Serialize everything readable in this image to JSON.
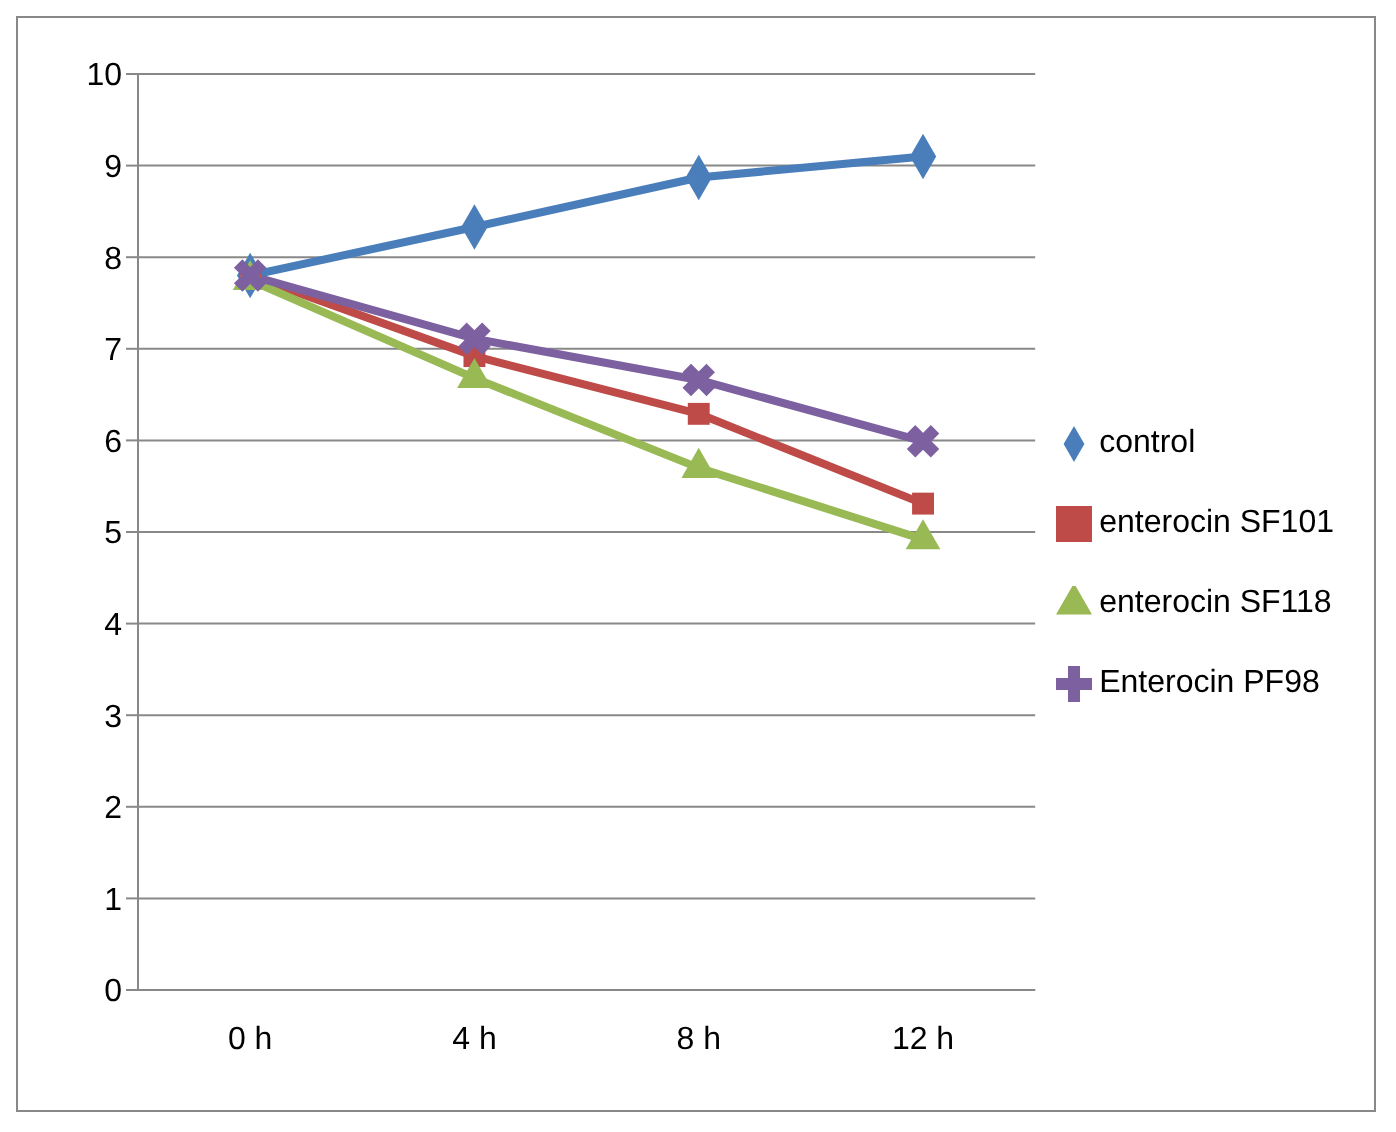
{
  "chart_data": {
    "type": "line",
    "categories": [
      "0 h",
      "4 h",
      "8 h",
      "12 h"
    ],
    "series": [
      {
        "name": "control",
        "color": "#4a7ebb",
        "marker": "diamond",
        "values": [
          7.8,
          8.33,
          8.87,
          9.1
        ]
      },
      {
        "name": "enterocin SF101",
        "color": "#be4b48",
        "marker": "square",
        "values": [
          7.8,
          6.92,
          6.29,
          5.31
        ]
      },
      {
        "name": "enterocin SF118",
        "color": "#98b954",
        "marker": "triangle",
        "values": [
          7.75,
          6.68,
          5.7,
          4.92
        ]
      },
      {
        "name": "Enterocin PF98",
        "color": "#7d60a0",
        "marker": "cross",
        "values": [
          7.8,
          7.11,
          6.66,
          5.99
        ]
      }
    ],
    "ylim": [
      0,
      10
    ],
    "yticks": [
      0,
      1,
      2,
      3,
      4,
      5,
      6,
      7,
      8,
      9,
      10
    ],
    "grid": "y",
    "legend": "right"
  }
}
